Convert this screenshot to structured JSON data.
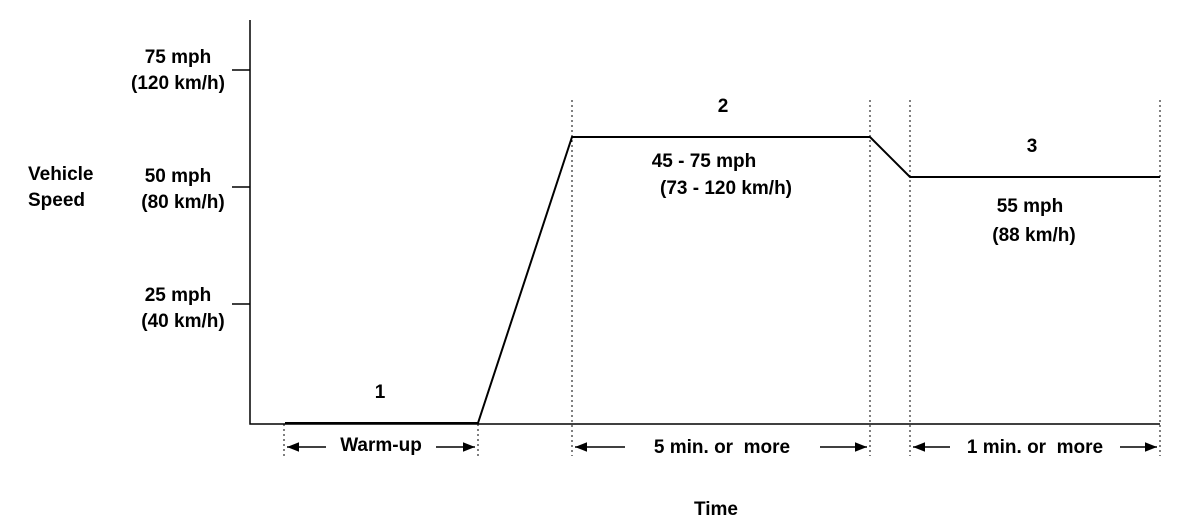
{
  "y_axis": {
    "label": [
      "Vehicle",
      "Speed"
    ],
    "ticks": [
      {
        "mph": "75 mph",
        "kmh": "(120 km/h)"
      },
      {
        "mph": "50 mph",
        "kmh": "(80 km/h)"
      },
      {
        "mph": "25 mph",
        "kmh": "(40 km/h)"
      }
    ]
  },
  "x_axis": {
    "label": "Time"
  },
  "phases": [
    {
      "number": "1",
      "duration": "Warm-up"
    },
    {
      "number": "2",
      "speed": [
        "45 - 75 mph",
        "(73 - 120 km/h)"
      ],
      "duration": "5 min. or  more"
    },
    {
      "number": "3",
      "speed": [
        "55 mph",
        "(88 km/h)"
      ],
      "duration": "1 min. or  more"
    }
  ]
}
